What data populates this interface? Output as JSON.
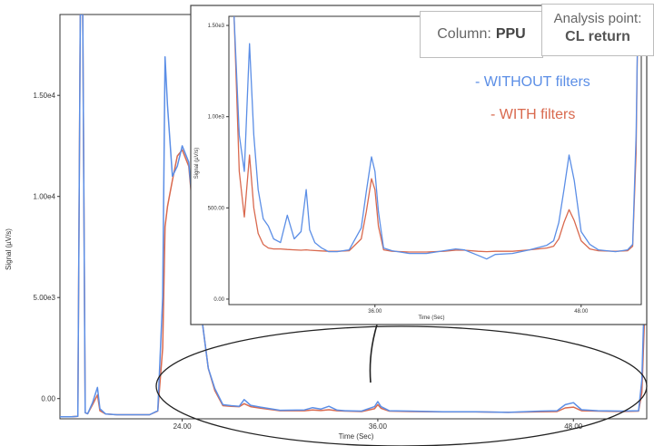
{
  "colors": {
    "without": "#5b8ee6",
    "with": "#d9694e",
    "axis": "#333333",
    "border": "#444444"
  },
  "annotation": {
    "column_label": "Column:",
    "column_value": "PPU",
    "analysis_label": "Analysis point:",
    "analysis_value": "CL return"
  },
  "legend": {
    "without": "- WITHOUT filters",
    "with": "- WITH filters"
  },
  "chart_data": [
    {
      "type": "line",
      "title": "",
      "xlabel": "Time (Sec)",
      "ylabel": "Signal (µV/s)",
      "xlim": [
        16.5,
        52.5
      ],
      "ylim": [
        -1000,
        19000
      ],
      "x_ticks": [
        {
          "v": 24,
          "label": "24.00"
        },
        {
          "v": 36,
          "label": "36.00"
        },
        {
          "v": 48,
          "label": "48.00"
        }
      ],
      "y_ticks": [
        {
          "v": 0,
          "label": "0.00"
        },
        {
          "v": 5000,
          "label": "5.00e3"
        },
        {
          "v": 10000,
          "label": "1.00e4"
        },
        {
          "v": 15000,
          "label": "1.50e4"
        }
      ],
      "series": [
        {
          "name": "- WITHOUT filters",
          "color": "#5b8ee6",
          "x": [
            16.5,
            17.2,
            17.6,
            17.75,
            17.9,
            18.05,
            18.2,
            18.5,
            18.8,
            18.95,
            19.3,
            20,
            21,
            22,
            22.5,
            22.8,
            22.95,
            23.1,
            23.4,
            23.7,
            24,
            24.4,
            24.8,
            25.2,
            25.6,
            26,
            26.5,
            27,
            27.5,
            27.8,
            28.2,
            28.8,
            30,
            31.5,
            32,
            32.5,
            33,
            33.5,
            34,
            35,
            35.8,
            36,
            36.2,
            36.7,
            38,
            40,
            42,
            44,
            46,
            47,
            47.5,
            48,
            48.5,
            49.5,
            51,
            52,
            52.2,
            52.5
          ],
          "y": [
            -900,
            -900,
            -880,
            19000,
            19000,
            -700,
            -750,
            -200,
            550,
            -500,
            -760,
            -800,
            -800,
            -800,
            -600,
            5000,
            16900,
            14500,
            11000,
            11500,
            12500,
            11700,
            8000,
            4000,
            1500,
            500,
            -300,
            -350,
            -380,
            -50,
            -330,
            -420,
            -580,
            -560,
            -450,
            -520,
            -380,
            -570,
            -600,
            -620,
            -400,
            -150,
            -400,
            -600,
            -620,
            -650,
            -650,
            -680,
            -620,
            -600,
            -300,
            -200,
            -550,
            -600,
            -620,
            -600,
            900,
            9000
          ]
        },
        {
          "name": "- WITH filters",
          "color": "#d9694e",
          "x": [
            16.5,
            17.2,
            17.6,
            17.75,
            17.9,
            18.05,
            18.2,
            18.5,
            18.8,
            18.95,
            19.3,
            20,
            21,
            22,
            22.5,
            22.8,
            22.95,
            23.1,
            23.4,
            23.7,
            24,
            24.4,
            24.8,
            25.2,
            25.6,
            26,
            26.5,
            27,
            27.5,
            27.8,
            28.2,
            28.8,
            30,
            31.5,
            32,
            32.5,
            33,
            33.5,
            34,
            35,
            35.8,
            36,
            36.2,
            36.7,
            38,
            40,
            42,
            44,
            46,
            47,
            47.5,
            48,
            48.5,
            49.5,
            51,
            52,
            52.2,
            52.5
          ],
          "y": [
            -900,
            -900,
            -880,
            19000,
            19000,
            -700,
            -750,
            -300,
            180,
            -600,
            -760,
            -800,
            -800,
            -800,
            -620,
            2500,
            8500,
            9500,
            10800,
            12000,
            12300,
            11500,
            8000,
            4000,
            1500,
            400,
            -350,
            -380,
            -400,
            -250,
            -400,
            -470,
            -600,
            -600,
            -560,
            -590,
            -550,
            -600,
            -620,
            -640,
            -500,
            -300,
            -480,
            -620,
            -640,
            -660,
            -660,
            -680,
            -650,
            -640,
            -460,
            -420,
            -600,
            -620,
            -640,
            -620,
            300,
            7000
          ]
        }
      ]
    },
    {
      "type": "line",
      "title": "",
      "xlabel": "Time (Sec)",
      "ylabel": "Signal (µV/s)",
      "xlim": [
        27.5,
        51.5
      ],
      "ylim": [
        -30,
        1550
      ],
      "x_ticks": [
        {
          "v": 36,
          "label": "36.00"
        },
        {
          "v": 48,
          "label": "48.00"
        }
      ],
      "y_ticks": [
        {
          "v": 0,
          "label": "0.00"
        },
        {
          "v": 500,
          "label": "500.00"
        },
        {
          "v": 1000,
          "label": "1.00e3"
        },
        {
          "v": 1500,
          "label": "1.50e3"
        }
      ],
      "series": [
        {
          "name": "- WITHOUT filters",
          "color": "#5b8ee6",
          "x": [
            27.8,
            28.1,
            28.4,
            28.7,
            28.95,
            29.2,
            29.5,
            29.8,
            30.1,
            30.5,
            30.9,
            31.3,
            31.7,
            32.0,
            32.2,
            32.5,
            32.9,
            33.3,
            33.8,
            34.5,
            35.2,
            35.5,
            35.8,
            36.0,
            36.2,
            36.5,
            37.0,
            38.0,
            39.0,
            40.0,
            40.7,
            41.2,
            42.0,
            42.5,
            43.0,
            44.0,
            45.0,
            46.0,
            46.4,
            46.7,
            47.0,
            47.3,
            47.6,
            48.0,
            48.5,
            49.0,
            50.0,
            50.7,
            51.0,
            51.2,
            51.3,
            51.5
          ],
          "y": [
            1550,
            900,
            700,
            1400,
            900,
            600,
            440,
            400,
            330,
            310,
            460,
            330,
            370,
            600,
            380,
            310,
            280,
            260,
            260,
            270,
            390,
            590,
            780,
            700,
            480,
            280,
            265,
            250,
            250,
            265,
            275,
            270,
            240,
            220,
            245,
            250,
            270,
            295,
            320,
            420,
            600,
            790,
            650,
            370,
            300,
            270,
            260,
            270,
            300,
            900,
            1550,
            1550
          ]
        },
        {
          "name": "- WITH filters",
          "color": "#d9694e",
          "x": [
            27.8,
            28.1,
            28.4,
            28.7,
            28.95,
            29.2,
            29.5,
            29.8,
            30.1,
            30.5,
            30.9,
            31.3,
            31.7,
            32.0,
            32.2,
            32.5,
            32.9,
            33.3,
            33.8,
            34.5,
            35.2,
            35.5,
            35.8,
            36.0,
            36.2,
            36.5,
            37.0,
            38.0,
            39.0,
            40.0,
            40.7,
            41.2,
            42.0,
            42.5,
            43.0,
            44.0,
            45.0,
            46.0,
            46.4,
            46.7,
            47.0,
            47.3,
            47.6,
            48.0,
            48.5,
            49.0,
            50.0,
            50.7,
            51.0,
            51.2,
            51.3,
            51.5
          ],
          "y": [
            1550,
            700,
            450,
            790,
            500,
            360,
            300,
            280,
            275,
            275,
            272,
            270,
            268,
            270,
            268,
            266,
            264,
            262,
            262,
            265,
            330,
            480,
            660,
            600,
            400,
            270,
            262,
            258,
            258,
            262,
            268,
            268,
            262,
            260,
            262,
            262,
            270,
            280,
            290,
            330,
            420,
            490,
            430,
            320,
            275,
            265,
            262,
            265,
            290,
            800,
            1550,
            1550
          ]
        }
      ]
    }
  ]
}
